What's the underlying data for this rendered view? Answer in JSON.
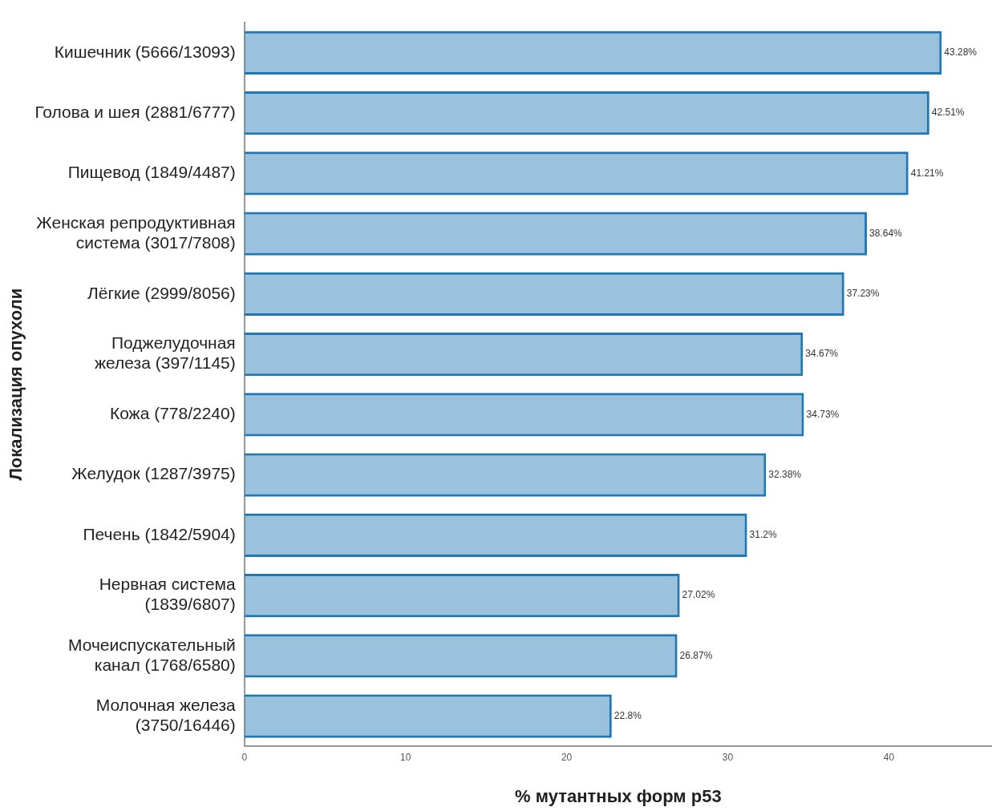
{
  "chart_data": {
    "type": "bar",
    "orientation": "horizontal",
    "xlabel": "% мутантных форм p53",
    "ylabel": "Локализация опухоли",
    "categories": [
      "Кишечник (5666/13093)",
      "Голова и шея (2881/6777)",
      "Пищевод (1849/4487)",
      "Женская репродуктивная\nсистема (3017/7808)",
      "Лёгкие (2999/8056)",
      "Поджелудочная\nжелеза (397/1145)",
      "Кожа (778/2240)",
      "Желудок (1287/3975)",
      "Печень (1842/5904)",
      "Нервная система\n(1839/6807)",
      "Мочеиспускательный\nканал (1768/6580)",
      "Молочная железа\n(3750/16446)"
    ],
    "values": [
      43.28,
      42.51,
      41.21,
      38.64,
      37.23,
      34.67,
      34.73,
      32.38,
      31.2,
      27.02,
      26.87,
      22.8
    ],
    "value_labels": [
      "43.28%",
      "42.51%",
      "41.21%",
      "38.64%",
      "37.23%",
      "34.67%",
      "34.73%",
      "32.38%",
      "31.2%",
      "27.02%",
      "26.87%",
      "22.8%"
    ],
    "color": "#1f77b4",
    "xlim": [
      0,
      46.4
    ],
    "xticks": [
      0,
      10,
      20,
      30,
      40
    ],
    "grid": false
  }
}
